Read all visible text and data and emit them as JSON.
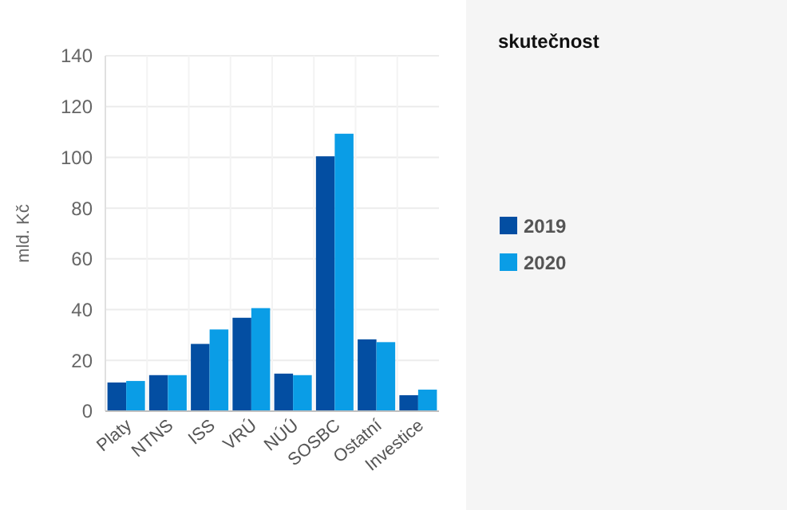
{
  "chart_data": {
    "type": "bar",
    "ylabel": "mld. Kč",
    "legend_title": "skutečnost",
    "categories": [
      "Platy",
      "NTNS",
      "ISS",
      "VRÚ",
      "NÚÚ",
      "SOSBC",
      "Ostatní",
      "Investice"
    ],
    "series": [
      {
        "name": "2019",
        "color": "#034ea2",
        "values": [
          11.3,
          14.2,
          26.5,
          36.8,
          14.8,
          100.4,
          28.3,
          6.3
        ]
      },
      {
        "name": "2020",
        "color": "#0a9de6",
        "values": [
          11.9,
          14.2,
          32.2,
          40.6,
          14.2,
          109.3,
          27.2,
          8.5
        ]
      }
    ],
    "ylim": [
      0,
      140
    ],
    "yticks": [
      0,
      20,
      40,
      60,
      80,
      100,
      120,
      140
    ],
    "grid": true,
    "legend": "right"
  }
}
